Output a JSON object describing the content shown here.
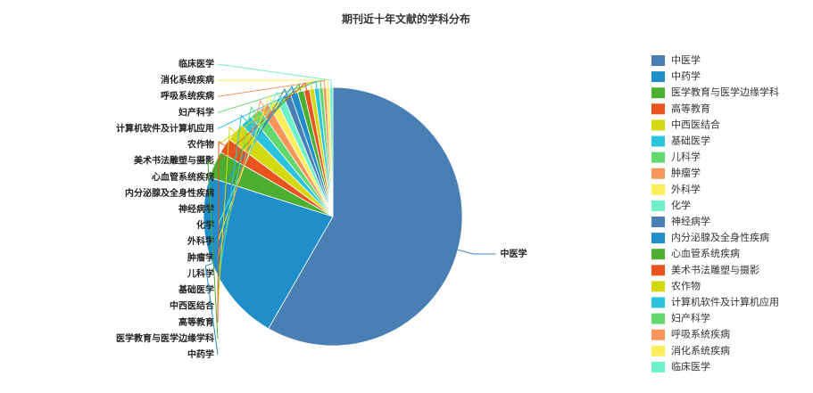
{
  "chart_data": {
    "type": "pie",
    "title": "期刊近十年文献的学科分布",
    "categories": [
      "中医学",
      "中药学",
      "医学教育与医学边缘学科",
      "高等教育",
      "中西医结合",
      "基础医学",
      "儿科学",
      "肿瘤学",
      "外科学",
      "化学",
      "神经病学",
      "内分泌腺及全身性疾病",
      "心血管系统疾病",
      "美术书法雕塑与摄影",
      "农作物",
      "计算机软件及计算机应用",
      "妇产科学",
      "呼吸系统疾病",
      "消化系统疾病",
      "临床医学"
    ],
    "values": [
      58.3,
      21.6,
      3.4,
      1.9,
      2.3,
      1.6,
      1.4,
      1.2,
      1.1,
      1.0,
      0.9,
      0.9,
      0.8,
      0.7,
      0.6,
      0.6,
      0.5,
      0.4,
      0.4,
      0.4
    ],
    "colors": [
      "#4a7fb5",
      "#1f8ec9",
      "#4caf32",
      "#e8531e",
      "#d4d90f",
      "#2bc3dd",
      "#63d86e",
      "#f8955a",
      "#fbee5a",
      "#6ef0c8",
      "#4a7fb5",
      "#1f8ec9",
      "#4caf32",
      "#e8531e",
      "#d4d90f",
      "#2bc3dd",
      "#63d86e",
      "#f8955a",
      "#fbee5a",
      "#6ef0c8"
    ],
    "legend": "right"
  }
}
